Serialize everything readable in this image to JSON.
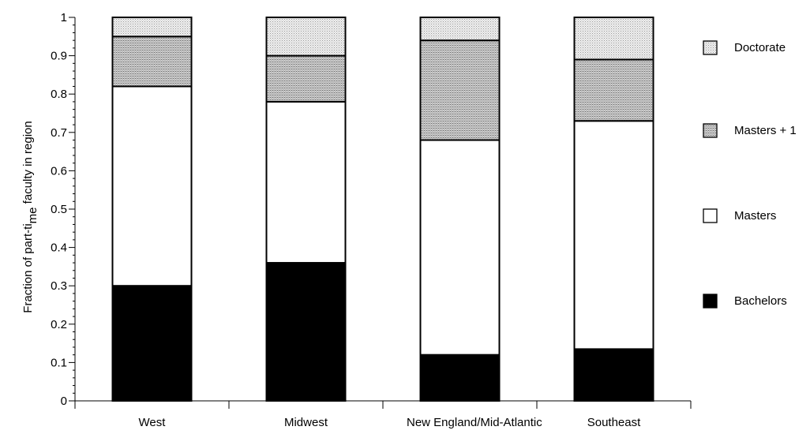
{
  "chart_data": {
    "type": "bar",
    "stacked": true,
    "categories": [
      "West",
      "Midwest",
      "New England/Mid-Atlantic",
      "Southeast"
    ],
    "series": [
      {
        "name": "Bachelors",
        "values": [
          0.3,
          0.36,
          0.12,
          0.135
        ],
        "color": "#000000"
      },
      {
        "name": "Masters",
        "values": [
          0.52,
          0.42,
          0.56,
          0.595
        ],
        "color": "#ffffff"
      },
      {
        "name": "Masters + 1",
        "values": [
          0.13,
          0.12,
          0.26,
          0.16
        ],
        "color": "#c8c8c8"
      },
      {
        "name": "Doctorate",
        "values": [
          0.05,
          0.1,
          0.06,
          0.11
        ],
        "color": "#e6e6e6"
      }
    ],
    "ylabel_main": "Fraction of part-ti",
    "ylabel_sub": "me",
    "ylabel_end": " faculty in region",
    "xlabel": "",
    "ylim": [
      0,
      1
    ],
    "yticks": [
      "0",
      "0.1",
      "0.2",
      "0.3",
      "0.4",
      "0.5",
      "0.6",
      "0.7",
      "0.8",
      "0.9",
      "1"
    ],
    "legend_order": [
      "Doctorate",
      "Masters + 1",
      "Masters",
      "Bachelors"
    ],
    "legend_position": "right"
  }
}
